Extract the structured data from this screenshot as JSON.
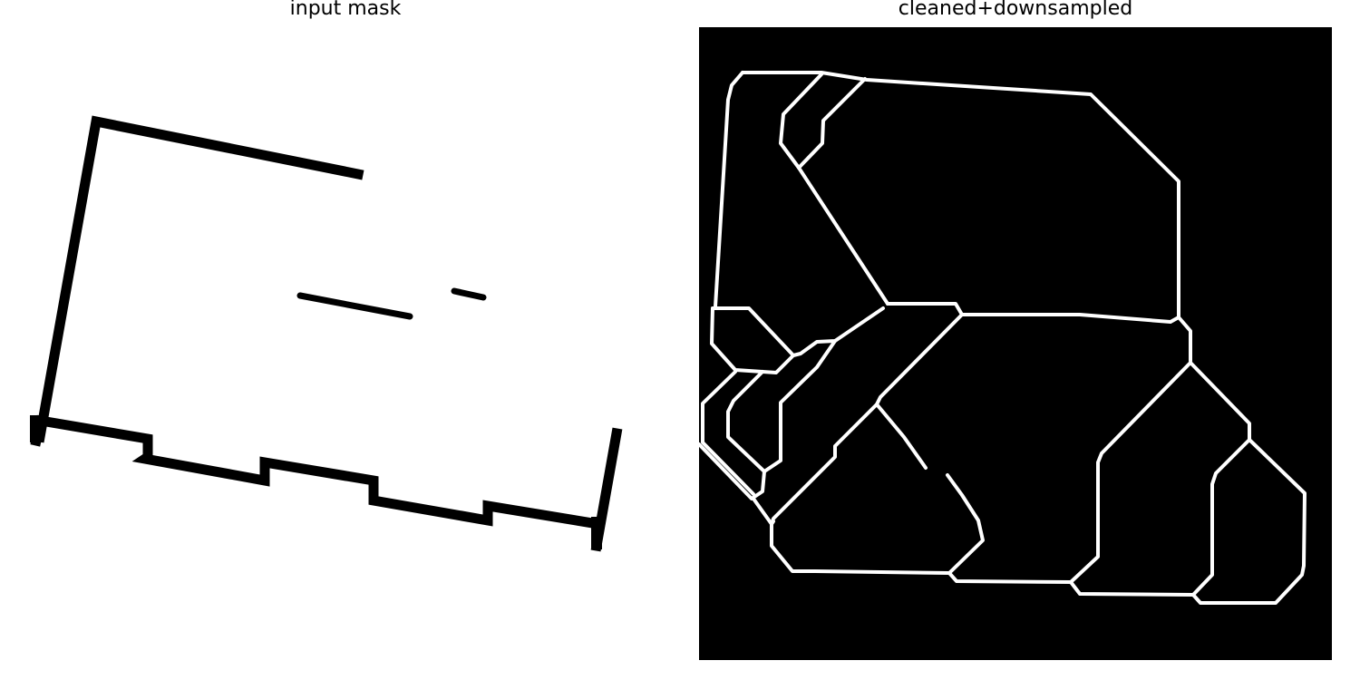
{
  "panels": {
    "left": {
      "title": "input mask"
    },
    "right": {
      "title": "cleaned+downsampled"
    }
  },
  "colors": {
    "background": "#ffffff",
    "mask_wall": "#000000",
    "right_background": "#000000",
    "right_lines": "#ffffff"
  }
}
